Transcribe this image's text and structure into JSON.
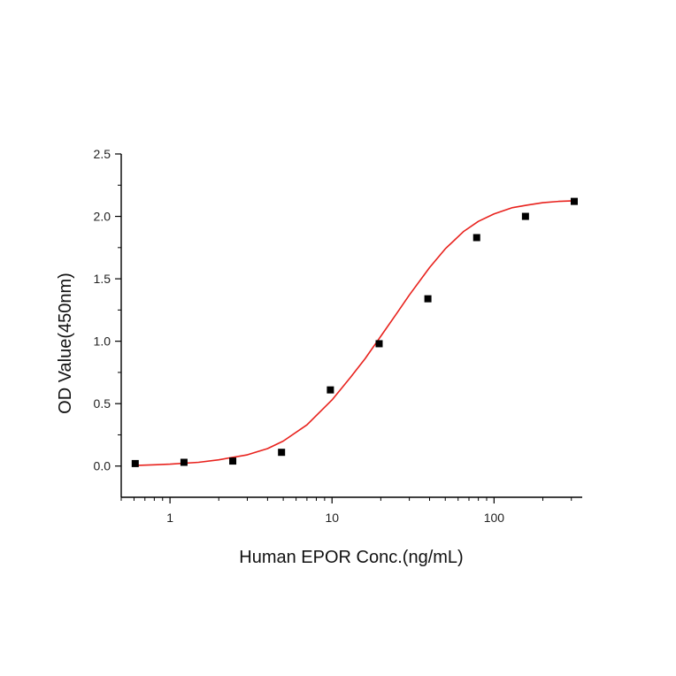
{
  "chart_data": {
    "type": "scatter",
    "xlabel": "Human EPOR Conc.(ng/mL)",
    "ylabel": "OD Value(450nm)",
    "x_scale": "log",
    "xlim": [
      0.5,
      350
    ],
    "ylim": [
      -0.25,
      2.5
    ],
    "x_ticks": [
      1,
      10,
      100
    ],
    "x_tick_labels": [
      "1",
      "10",
      "100"
    ],
    "y_ticks": [
      0.0,
      0.5,
      1.0,
      1.5,
      2.0,
      2.5
    ],
    "y_tick_labels": [
      "0.0",
      "0.5",
      "1.0",
      "1.5",
      "2.0",
      "2.5"
    ],
    "grid": false,
    "legend": "none",
    "points": {
      "x": [
        0.61,
        1.22,
        2.44,
        4.88,
        9.77,
        19.53,
        39.06,
        78.13,
        156.25,
        312.5
      ],
      "y": [
        0.02,
        0.03,
        0.04,
        0.11,
        0.61,
        0.98,
        1.34,
        1.83,
        2.0,
        2.12
      ],
      "color": "#000000"
    },
    "fit_curve": {
      "x": [
        0.61,
        0.8,
        1,
        1.5,
        2,
        3,
        4,
        5,
        7,
        10,
        13,
        16,
        20,
        25,
        30,
        40,
        50,
        65,
        80,
        100,
        130,
        160,
        200,
        250,
        312.5
      ],
      "y": [
        0.005,
        0.01,
        0.015,
        0.03,
        0.05,
        0.09,
        0.14,
        0.2,
        0.33,
        0.53,
        0.71,
        0.86,
        1.04,
        1.22,
        1.37,
        1.59,
        1.74,
        1.88,
        1.96,
        2.02,
        2.07,
        2.09,
        2.11,
        2.12,
        2.125
      ],
      "color": "#e8221d"
    }
  }
}
